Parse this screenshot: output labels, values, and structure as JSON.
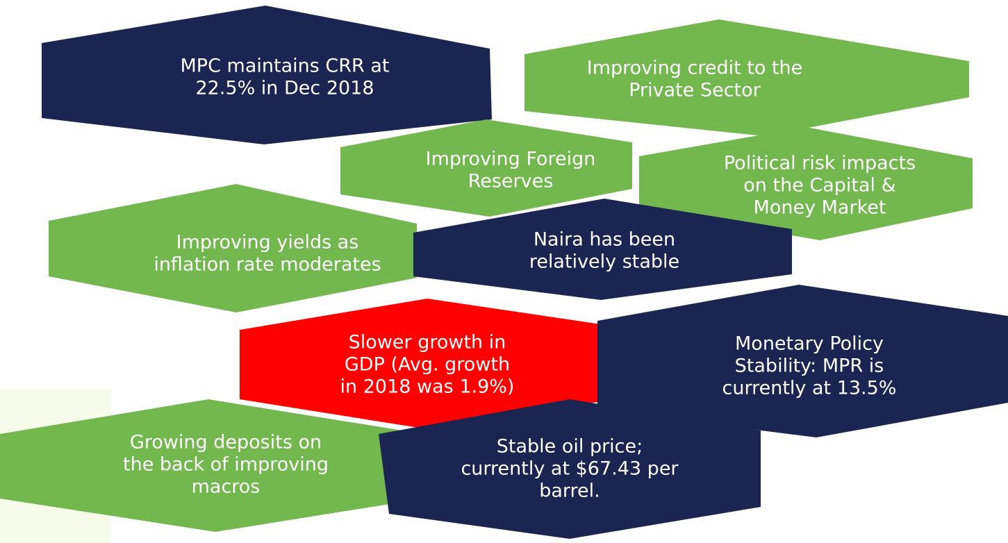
{
  "nodes": [
    {
      "lines": [
        "MPC maintains CRR at",
        "22.5% in Dec 2018"
      ],
      "color": "#1b2551"
    },
    {
      "lines": [
        "Improving credit to the",
        "Private Sector"
      ],
      "color": "#72b84f"
    },
    {
      "lines": [
        "Improving Foreign",
        "Reserves"
      ],
      "color": "#72b84f"
    },
    {
      "lines": [
        "Political risk impacts",
        "on the Capital &",
        "Money  Market"
      ],
      "color": "#72b84f"
    },
    {
      "lines": [
        "Improving yields as",
        "inflation rate moderates"
      ],
      "color": "#72b84f"
    },
    {
      "lines": [
        "Naira has been",
        "relatively stable"
      ],
      "color": "#1b2551"
    },
    {
      "lines": [
        "Slower growth in",
        "GDP (Avg. growth",
        "in 2018 was 1.9%)"
      ],
      "color": "#fe0000"
    },
    {
      "lines": [
        "Monetary Policy",
        "Stability: MPR is",
        "currently at 13.5%"
      ],
      "color": "#1b2551"
    },
    {
      "lines": [
        "Growing deposits on",
        "the back of improving",
        "macros"
      ],
      "color": "#72b84f"
    },
    {
      "lines": [
        "Stable oil price;",
        "currently at $67.43 per",
        "barrel."
      ],
      "color": "#1b2551"
    }
  ]
}
